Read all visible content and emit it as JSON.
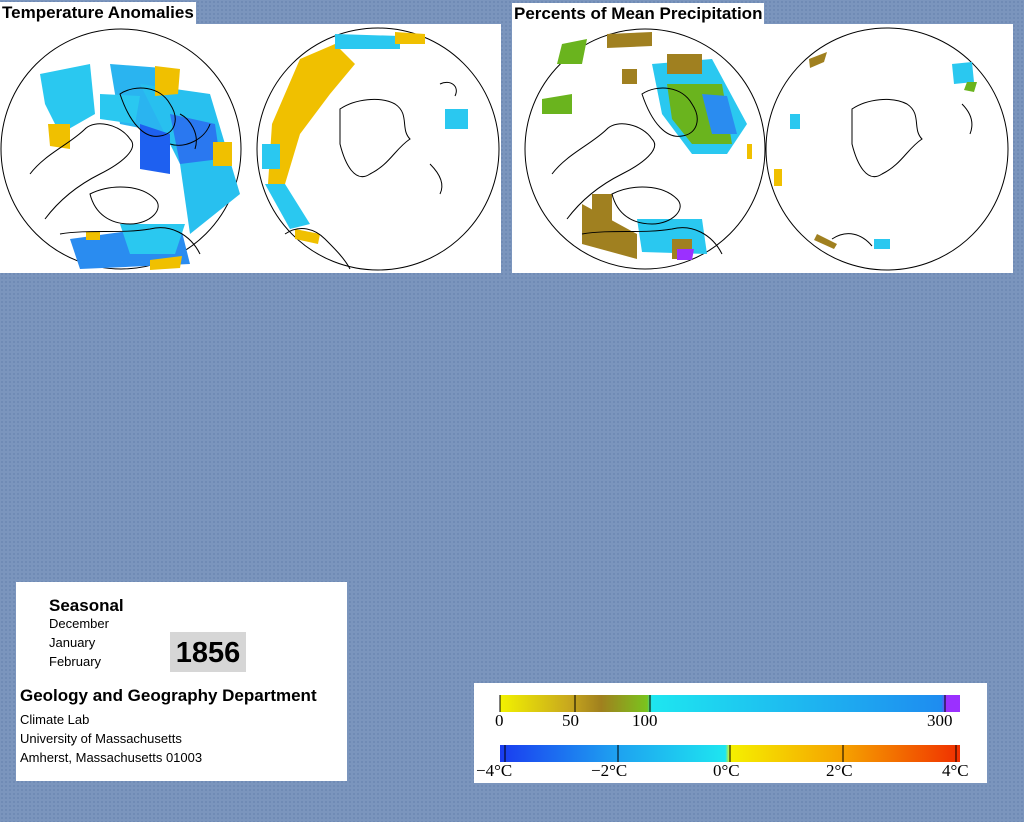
{
  "panels": {
    "temperature": {
      "title": "Temperature Anomalies"
    },
    "precipitation": {
      "title": "Percents of Mean Precipitation"
    }
  },
  "info": {
    "season_label": "Seasonal",
    "months": [
      "December",
      "January",
      "February"
    ],
    "year": "1856",
    "department": "Geology and Geography Department",
    "lab": "Climate Lab",
    "university": "University of Massachusetts",
    "address": "Amherst, Massachusetts 01003"
  },
  "legend": {
    "precipitation": {
      "ticks": [
        "0",
        "50",
        "100",
        "300"
      ],
      "tick_values": [
        0,
        50,
        100,
        300
      ],
      "colors": [
        "#f2f200",
        "#b48c1e",
        "#7ac41e",
        "#1ee6f0",
        "#1e8cf0",
        "#9b30ff"
      ]
    },
    "temperature": {
      "ticks": [
        "−4°C",
        "−2°C",
        "0°C",
        "2°C",
        "4°C"
      ],
      "tick_values": [
        -4,
        -2,
        0,
        2,
        4
      ],
      "colors": [
        "#1a3cf0",
        "#1ea0f0",
        "#1ee6f0",
        "#f5f000",
        "#f5a000",
        "#f03000"
      ]
    }
  },
  "colors": {
    "background": "#7b95bd",
    "cold": "#1ec8f0",
    "very_cold": "#1e6cf0",
    "warm": "#f0c000",
    "dry": "#a08020",
    "wet_green": "#6ab41e"
  }
}
